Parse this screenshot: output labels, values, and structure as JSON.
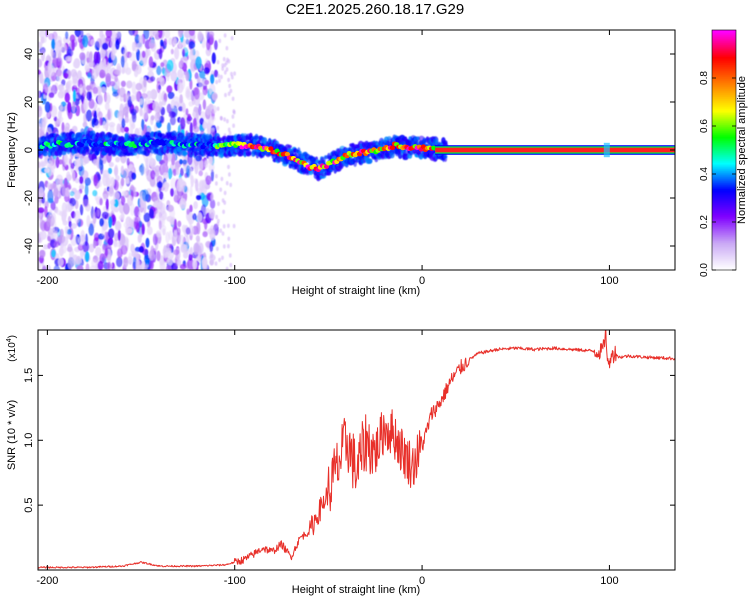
{
  "title": "C2E1.2025.260.18.17.G29",
  "chart_data": [
    {
      "type": "heatmap",
      "xlabel": "Height of straight line (km)",
      "ylabel": "Frequency (Hz)",
      "xlim": [
        -205,
        135
      ],
      "ylim": [
        -50,
        50
      ],
      "xticks": [
        "-200",
        "-100",
        "0",
        "100"
      ],
      "xtick_values": [
        -200,
        -100,
        0,
        100
      ],
      "yticks": [
        "40",
        "20",
        "0",
        "-20",
        "-40"
      ],
      "ytick_values": [
        40,
        20,
        0,
        -20,
        -40
      ],
      "colorbar": {
        "label": "Normalized spectral amplitude",
        "range": [
          0,
          1
        ],
        "ticks": [
          "0.0",
          "0.2",
          "0.4",
          "0.6",
          "0.8"
        ],
        "tick_values": [
          0,
          0.2,
          0.4,
          0.6,
          0.8
        ],
        "colormap": [
          "#ffffff",
          "#c9a8f5",
          "#8000ff",
          "#0000ff",
          "#00ffff",
          "#00ff00",
          "#ffff00",
          "#ff8000",
          "#ff0000",
          "#ff00ff"
        ]
      },
      "ridge": {
        "x": [
          -205,
          -180,
          -160,
          -140,
          -120,
          -110,
          -100,
          -90,
          -80,
          -70,
          -60,
          -55,
          -50,
          -45,
          -40,
          -30,
          -20,
          -15,
          -10,
          -5,
          0,
          10,
          50,
          100,
          135
        ],
        "freq": [
          2,
          3,
          2,
          3,
          2,
          2,
          2,
          2,
          0,
          -3,
          -7,
          -8,
          -6,
          -4,
          -2,
          -1,
          0,
          2,
          1,
          1,
          1,
          0,
          0,
          0,
          0
        ]
      },
      "scatter_region_x": [
        -205,
        -110
      ]
    },
    {
      "type": "line",
      "xlabel": "Height of straight line (km)",
      "ylabel": "SNR (10 * v/v)",
      "y_multiplier": "(x10",
      "y_multiplier_exp": "4",
      "y_multiplier_close": ")",
      "xlim": [
        -205,
        135
      ],
      "ylim": [
        0,
        1.85
      ],
      "xticks": [
        "-200",
        "-100",
        "0",
        "100"
      ],
      "xtick_values": [
        -200,
        -100,
        0,
        100
      ],
      "yticks": [
        "1.5",
        "1.0",
        "0.5"
      ],
      "ytick_values": [
        1.5,
        1.0,
        0.5
      ],
      "line_color": "#e8302a",
      "series": [
        {
          "name": "SNR",
          "x": [
            -205,
            -180,
            -160,
            -150,
            -140,
            -120,
            -105,
            -100,
            -95,
            -90,
            -85,
            -80,
            -75,
            -70,
            -65,
            -60,
            -55,
            -50,
            -45,
            -40,
            -35,
            -30,
            -25,
            -20,
            -15,
            -10,
            -5,
            0,
            5,
            10,
            15,
            20,
            25,
            30,
            40,
            50,
            60,
            70,
            80,
            90,
            95,
            97,
            98,
            99,
            100,
            101,
            102,
            103,
            105,
            110,
            120,
            135
          ],
          "y": [
            0.02,
            0.02,
            0.03,
            0.06,
            0.03,
            0.03,
            0.04,
            0.06,
            0.08,
            0.12,
            0.17,
            0.14,
            0.2,
            0.1,
            0.25,
            0.3,
            0.45,
            0.6,
            0.8,
            1.0,
            0.75,
            1.0,
            0.9,
            1.1,
            1.05,
            0.9,
            0.8,
            0.95,
            1.2,
            1.3,
            1.45,
            1.55,
            1.62,
            1.67,
            1.7,
            1.71,
            1.7,
            1.71,
            1.7,
            1.69,
            1.68,
            1.72,
            1.85,
            1.62,
            1.55,
            1.7,
            1.65,
            1.68,
            1.64,
            1.65,
            1.64,
            1.63
          ]
        }
      ]
    }
  ]
}
